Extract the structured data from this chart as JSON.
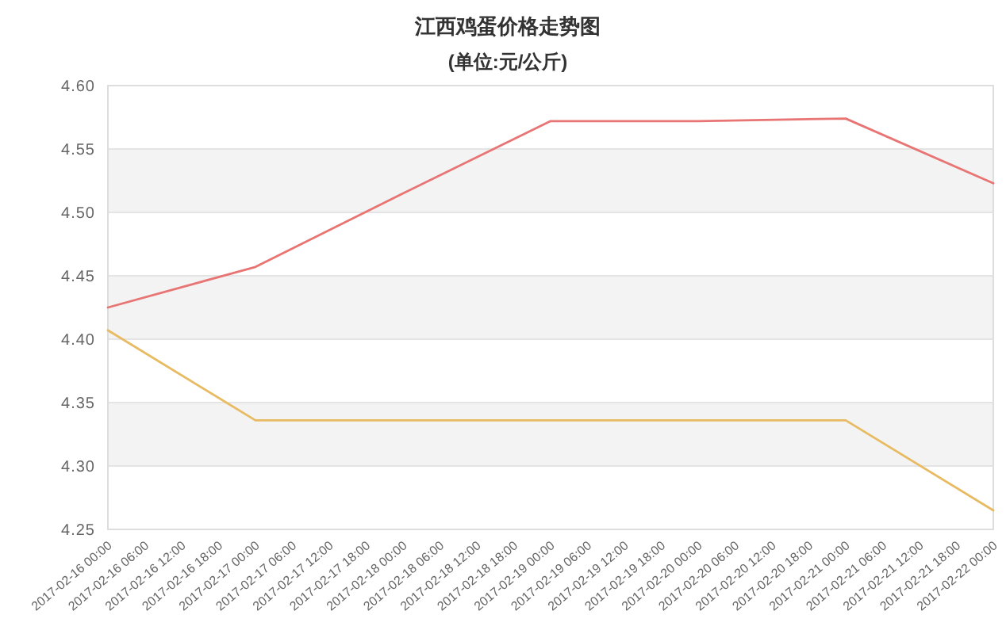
{
  "chart_data": {
    "type": "line",
    "title": "江西鸡蛋价格走势图",
    "subtitle": "(单位:元/公斤)",
    "x": [
      "2017-02-16T00:00",
      "2017-02-17T00:00",
      "2017-02-18T00:00",
      "2017-02-19T00:00",
      "2017-02-20T00:00",
      "2017-02-21T00:00",
      "2017-02-22T00:00"
    ],
    "series": [
      {
        "color": "#e87474",
        "values": [
          4.425,
          4.457,
          4.515,
          4.572,
          4.572,
          4.574,
          4.523
        ]
      },
      {
        "color": "#e8bb62",
        "values": [
          4.407,
          4.336,
          4.336,
          4.336,
          4.336,
          4.336,
          4.265
        ]
      }
    ],
    "xlim": [
      "2017-02-16T00:00",
      "2017-02-22T00:00"
    ],
    "xticks": [
      {
        "value": "2017-02-16T00:00",
        "label": "2017-02-16 00:00"
      },
      {
        "value": "2017-02-16T06:00",
        "label": "2017-02-16 06:00"
      },
      {
        "value": "2017-02-16T12:00",
        "label": "2017-02-16 12:00"
      },
      {
        "value": "2017-02-16T18:00",
        "label": "2017-02-16 18:00"
      },
      {
        "value": "2017-02-17T00:00",
        "label": "2017-02-17 00:00"
      },
      {
        "value": "2017-02-17T06:00",
        "label": "2017-02-17 06:00"
      },
      {
        "value": "2017-02-17T12:00",
        "label": "2017-02-17 12:00"
      },
      {
        "value": "2017-02-17T18:00",
        "label": "2017-02-17 18:00"
      },
      {
        "value": "2017-02-18T00:00",
        "label": "2017-02-18 00:00"
      },
      {
        "value": "2017-02-18T06:00",
        "label": "2017-02-18 06:00"
      },
      {
        "value": "2017-02-18T12:00",
        "label": "2017-02-18 12:00"
      },
      {
        "value": "2017-02-18T18:00",
        "label": "2017-02-18 18:00"
      },
      {
        "value": "2017-02-19T00:00",
        "label": "2017-02-19 00:00"
      },
      {
        "value": "2017-02-19T06:00",
        "label": "2017-02-19 06:00"
      },
      {
        "value": "2017-02-19T12:00",
        "label": "2017-02-19 12:00"
      },
      {
        "value": "2017-02-19T18:00",
        "label": "2017-02-19 18:00"
      },
      {
        "value": "2017-02-20T00:00",
        "label": "2017-02-20 00:00"
      },
      {
        "value": "2017-02-20T06:00",
        "label": "2017-02-20 06:00"
      },
      {
        "value": "2017-02-20T12:00",
        "label": "2017-02-20 12:00"
      },
      {
        "value": "2017-02-20T18:00",
        "label": "2017-02-20 18:00"
      },
      {
        "value": "2017-02-21T00:00",
        "label": "2017-02-21 00:00"
      },
      {
        "value": "2017-02-21T06:00",
        "label": "2017-02-21 06:00"
      },
      {
        "value": "2017-02-21T12:00",
        "label": "2017-02-21 12:00"
      },
      {
        "value": "2017-02-21T18:00",
        "label": "2017-02-21 18:00"
      },
      {
        "value": "2017-02-22T00:00",
        "label": "2017-02-22 00:00"
      }
    ],
    "ylim": [
      4.25,
      4.6
    ],
    "yticks": [
      4.25,
      {
        "value": 4.3,
        "label": "4.30"
      },
      4.35,
      {
        "value": 4.4,
        "label": "4.40"
      },
      4.45,
      {
        "value": 4.5,
        "label": "4.50"
      },
      4.55,
      {
        "value": 4.6,
        "label": "4.60"
      }
    ],
    "grid": "y",
    "line_style": "solid"
  }
}
